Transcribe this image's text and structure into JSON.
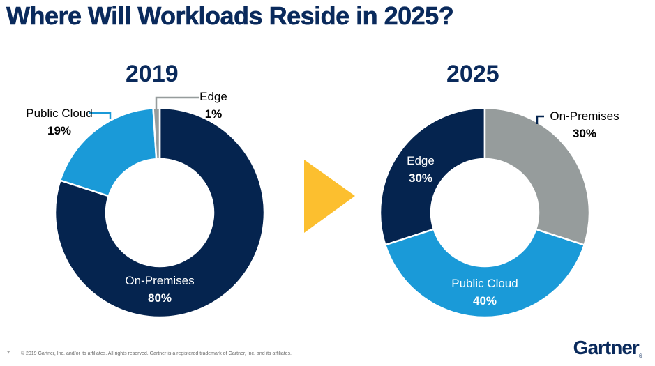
{
  "slide": {
    "title": "Where Will Workloads Reside in 2025?",
    "footer_page": "7",
    "footer_text": "© 2019 Gartner, Inc. and/or its affiliates. All rights reserved. Gartner is a registered trademark of Gartner, Inc. and its affiliates.",
    "logo_text": "Gartner",
    "logo_mark": "®",
    "arrow_icon": "yellow-triangle-arrow-icon",
    "arrow_color": "#fcbf2f"
  },
  "colors": {
    "On-Premises": "#05244f",
    "Public Cloud": "#1a9ad8",
    "Edge": "#969c9c"
  },
  "chart_data": [
    {
      "type": "pie",
      "donut": true,
      "title": "2019",
      "labels": [
        "On-Premises",
        "Public Cloud",
        "Edge"
      ],
      "values": [
        80,
        19,
        1
      ],
      "value_labels": [
        "80%",
        "19%",
        "1%"
      ]
    },
    {
      "type": "pie",
      "donut": true,
      "title": "2025",
      "labels": [
        "On-Premises",
        "Public Cloud",
        "Edge"
      ],
      "values": [
        30,
        40,
        30
      ],
      "value_labels": [
        "30%",
        "40%",
        "30%"
      ]
    }
  ]
}
